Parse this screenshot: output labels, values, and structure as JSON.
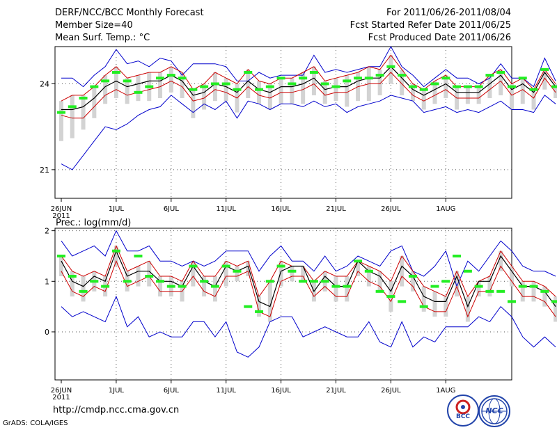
{
  "header": {
    "title": "DERF/NCC/BCC Monthly Forecast",
    "member_size": "Member Size=40",
    "variable": "Mean Surf. Temp.: °C",
    "period": "For 2011/06/26-2011/08/04",
    "started_refer": "Fcst Started Refer Date 2011/06/25",
    "produced": "Fcst Produced Date 2011/06/26"
  },
  "footer": {
    "url": "http://cmdp.ncc.cma.gov.cn",
    "grads": "GrADS: COLA/IGES",
    "logo_bcc": "BCC",
    "logo_ncc": "NCC"
  },
  "colors": {
    "envelope": "#0000cc",
    "spread": "#cc0000",
    "mean": "#000000",
    "box": "#d3d3d3",
    "median": "#22ee22"
  },
  "chart_data": [
    {
      "type": "line",
      "title": "Mean Surf. Temp.: °C",
      "x_ticks": [
        "26JUN",
        "1JUL",
        "6JUL",
        "11JUL",
        "16JUL",
        "21JUL",
        "26JUL",
        "1AUG"
      ],
      "x_year": "2011",
      "y_ticks": [
        "21",
        "24"
      ],
      "ylim": [
        20.0,
        25.3
      ],
      "series": [
        {
          "name": "max",
          "values": [
            24.2,
            24.2,
            23.9,
            24.3,
            24.6,
            25.2,
            24.7,
            24.8,
            24.6,
            24.9,
            24.8,
            24.3,
            24.7,
            24.7,
            24.7,
            24.6,
            24.1,
            24.1,
            24.4,
            24.2,
            24.3,
            24.3,
            24.3,
            25.0,
            24.4,
            24.5,
            24.4,
            24.5,
            24.6,
            24.6,
            25.3,
            24.6,
            24.3,
            23.9,
            24.2,
            24.5,
            24.2,
            24.2,
            24.0,
            24.2,
            24.7,
            24.2,
            24.2,
            23.9,
            24.9,
            24.1
          ]
        },
        {
          "name": "upper",
          "values": [
            23.4,
            23.6,
            23.6,
            23.9,
            24.3,
            24.6,
            24.2,
            24.3,
            24.4,
            24.4,
            24.6,
            24.4,
            23.8,
            24.0,
            24.4,
            24.2,
            24.0,
            24.5,
            24.1,
            24.0,
            24.2,
            24.2,
            24.4,
            24.6,
            24.1,
            24.2,
            24.3,
            24.4,
            24.6,
            24.5,
            25.0,
            24.5,
            24.0,
            23.8,
            24.1,
            24.3,
            23.9,
            23.9,
            23.9,
            24.3,
            24.5,
            24.0,
            24.2,
            23.8,
            24.5,
            24.0
          ]
        },
        {
          "name": "mean",
          "values": [
            23.1,
            23.1,
            23.2,
            23.5,
            23.9,
            24.1,
            23.9,
            24.0,
            24.1,
            24.1,
            24.3,
            24.1,
            23.6,
            23.7,
            24.0,
            23.9,
            23.7,
            24.1,
            23.8,
            23.7,
            23.9,
            23.9,
            24.0,
            24.2,
            23.8,
            23.9,
            23.9,
            24.1,
            24.2,
            24.2,
            24.6,
            24.2,
            23.8,
            23.6,
            23.8,
            24.0,
            23.7,
            23.7,
            23.7,
            24.0,
            24.3,
            23.8,
            24.0,
            23.7,
            24.4,
            23.9
          ]
        },
        {
          "name": "lower",
          "values": [
            22.9,
            22.8,
            22.8,
            23.2,
            23.6,
            23.8,
            23.6,
            23.7,
            23.8,
            23.9,
            24.1,
            23.9,
            23.4,
            23.5,
            23.8,
            23.7,
            23.5,
            23.9,
            23.6,
            23.5,
            23.7,
            23.7,
            23.8,
            24.0,
            23.6,
            23.7,
            23.7,
            23.9,
            24.0,
            24.0,
            24.4,
            24.0,
            23.6,
            23.4,
            23.6,
            23.8,
            23.5,
            23.5,
            23.5,
            23.8,
            24.1,
            23.6,
            23.8,
            23.5,
            24.2,
            23.7
          ]
        },
        {
          "name": "low",
          "values": [
            22.0,
            22.1,
            22.4,
            22.8,
            23.3,
            23.5,
            23.3,
            23.4,
            23.4,
            23.5,
            23.7,
            23.5,
            22.8,
            23.1,
            23.4,
            23.4,
            23.0,
            23.5,
            23.3,
            23.1,
            23.3,
            23.3,
            23.3,
            23.6,
            23.3,
            23.4,
            23.2,
            23.4,
            23.4,
            23.6,
            24.0,
            23.6,
            23.4,
            23.1,
            23.3,
            23.5,
            23.1,
            23.3,
            23.3,
            23.5,
            23.6,
            23.1,
            23.3,
            23.1,
            23.8,
            23.5
          ]
        },
        {
          "name": "min",
          "values": [
            21.2,
            21.0,
            21.5,
            22.0,
            22.5,
            22.4,
            22.6,
            22.9,
            23.1,
            23.2,
            23.6,
            23.3,
            23.0,
            23.3,
            23.1,
            23.4,
            22.8,
            23.4,
            23.3,
            23.1,
            23.3,
            23.3,
            23.2,
            23.4,
            23.2,
            23.3,
            23.0,
            23.2,
            23.3,
            23.4,
            23.6,
            23.5,
            23.4,
            23.0,
            23.1,
            23.2,
            23.0,
            23.1,
            23.0,
            23.2,
            23.4,
            23.1,
            23.1,
            23.0,
            23.6,
            23.3
          ]
        },
        {
          "name": "median",
          "values": [
            23.0,
            23.2,
            23.5,
            23.9,
            24.1,
            24.4,
            24.1,
            23.7,
            23.9,
            24.2,
            24.3,
            24.2,
            23.8,
            23.9,
            24.0,
            24.0,
            23.8,
            24.4,
            23.8,
            23.9,
            24.2,
            24.0,
            24.2,
            24.4,
            24.0,
            23.9,
            24.1,
            24.2,
            24.2,
            24.3,
            24.6,
            24.3,
            23.9,
            23.8,
            24.0,
            24.2,
            23.9,
            23.9,
            23.9,
            24.3,
            24.4,
            23.9,
            24.2,
            23.8,
            24.5,
            23.9
          ]
        }
      ]
    },
    {
      "type": "line",
      "title": "Prec.: log(mm/d)",
      "x_ticks": [
        "26JUN",
        "1JUL",
        "6JUL",
        "11JUL",
        "16JUL",
        "21JUL",
        "26JUL",
        "1AUG"
      ],
      "x_year": "2011",
      "y_ticks": [
        "0",
        "1",
        "2"
      ],
      "ylim": [
        -0.95,
        2.05
      ],
      "series": [
        {
          "name": "max",
          "values": [
            1.8,
            1.5,
            1.6,
            1.7,
            1.5,
            2.0,
            1.6,
            1.6,
            1.7,
            1.4,
            1.4,
            1.3,
            1.4,
            1.3,
            1.4,
            1.6,
            1.6,
            1.6,
            1.2,
            1.5,
            1.7,
            1.4,
            1.4,
            1.2,
            1.5,
            1.2,
            1.3,
            1.5,
            1.4,
            1.3,
            1.6,
            1.7,
            1.2,
            1.1,
            1.3,
            1.6,
            0.9,
            1.4,
            1.2,
            1.5,
            1.8,
            1.6,
            1.3,
            1.2,
            1.2,
            1.1
          ]
        },
        {
          "name": "upper",
          "values": [
            1.5,
            1.2,
            1.1,
            1.2,
            1.1,
            1.7,
            1.2,
            1.3,
            1.4,
            1.1,
            1.1,
            1.0,
            1.4,
            1.1,
            1.1,
            1.4,
            1.3,
            1.4,
            0.7,
            1.0,
            1.4,
            1.3,
            1.3,
            1.0,
            1.2,
            1.1,
            1.1,
            1.4,
            1.3,
            1.2,
            1.0,
            1.5,
            1.2,
            0.9,
            0.8,
            0.7,
            1.2,
            0.7,
            1.0,
            1.1,
            1.6,
            1.3,
            1.0,
            1.0,
            0.9,
            0.7
          ]
        },
        {
          "name": "mean",
          "values": [
            1.4,
            1.0,
            0.9,
            1.1,
            1.0,
            1.6,
            1.1,
            1.2,
            1.2,
            1.0,
            1.0,
            0.9,
            1.3,
            1.0,
            0.9,
            1.3,
            1.2,
            1.3,
            0.6,
            0.5,
            1.2,
            1.3,
            1.3,
            0.8,
            1.1,
            0.9,
            0.9,
            1.4,
            1.2,
            1.1,
            0.8,
            1.3,
            1.1,
            0.7,
            0.6,
            0.6,
            1.1,
            0.5,
            1.0,
            1.0,
            1.5,
            1.2,
            0.9,
            0.9,
            0.8,
            0.5
          ]
        },
        {
          "name": "lower",
          "values": [
            1.2,
            0.8,
            0.7,
            0.9,
            0.8,
            1.4,
            0.9,
            1.0,
            1.1,
            0.8,
            0.8,
            0.8,
            1.1,
            0.8,
            0.7,
            1.1,
            1.1,
            1.2,
            0.4,
            0.3,
            1.0,
            1.1,
            1.1,
            0.7,
            0.9,
            0.7,
            0.7,
            1.2,
            1.0,
            0.9,
            0.6,
            1.1,
            0.9,
            0.5,
            0.4,
            0.4,
            0.9,
            0.3,
            0.8,
            0.8,
            1.3,
            1.0,
            0.7,
            0.7,
            0.6,
            0.3
          ]
        },
        {
          "name": "low",
          "values": [
            1.1,
            0.7,
            0.6,
            0.8,
            0.7,
            1.3,
            0.8,
            0.9,
            0.9,
            0.7,
            0.7,
            0.6,
            0.9,
            0.7,
            0.6,
            0.9,
            1.0,
            1.1,
            0.3,
            0.2,
            0.9,
            1.0,
            1.0,
            0.6,
            0.8,
            0.6,
            0.6,
            1.1,
            0.9,
            0.8,
            0.4,
            0.9,
            0.8,
            0.4,
            0.3,
            0.3,
            0.7,
            0.2,
            0.7,
            0.7,
            1.2,
            0.9,
            0.6,
            0.6,
            0.5,
            0.2
          ]
        },
        {
          "name": "min",
          "values": [
            0.5,
            0.3,
            0.4,
            0.3,
            0.2,
            0.7,
            0.1,
            0.3,
            -0.1,
            -0.0,
            -0.1,
            -0.1,
            0.2,
            0.2,
            -0.1,
            0.2,
            -0.4,
            -0.5,
            -0.3,
            0.2,
            0.3,
            0.3,
            -0.1,
            -0.0,
            0.1,
            -0.0,
            -0.1,
            -0.1,
            0.2,
            -0.2,
            -0.3,
            0.2,
            -0.3,
            -0.1,
            -0.2,
            0.1,
            0.1,
            0.1,
            0.3,
            0.2,
            0.5,
            0.3,
            -0.1,
            -0.3,
            -0.1,
            -0.3
          ]
        },
        {
          "name": "median",
          "values": [
            1.5,
            1.1,
            0.8,
            1.0,
            0.9,
            1.6,
            1.0,
            1.5,
            1.1,
            1.0,
            0.9,
            0.9,
            1.3,
            1.0,
            0.9,
            1.3,
            1.2,
            0.5,
            0.4,
            1.0,
            1.3,
            1.2,
            1.0,
            1.0,
            1.0,
            0.9,
            0.9,
            1.4,
            1.2,
            0.8,
            0.7,
            0.6,
            1.1,
            0.5,
            0.9,
            1.0,
            1.5,
            1.2,
            0.9,
            0.8,
            0.8,
            0.6,
            0.9,
            0.9,
            0.8,
            0.6
          ]
        }
      ]
    }
  ]
}
